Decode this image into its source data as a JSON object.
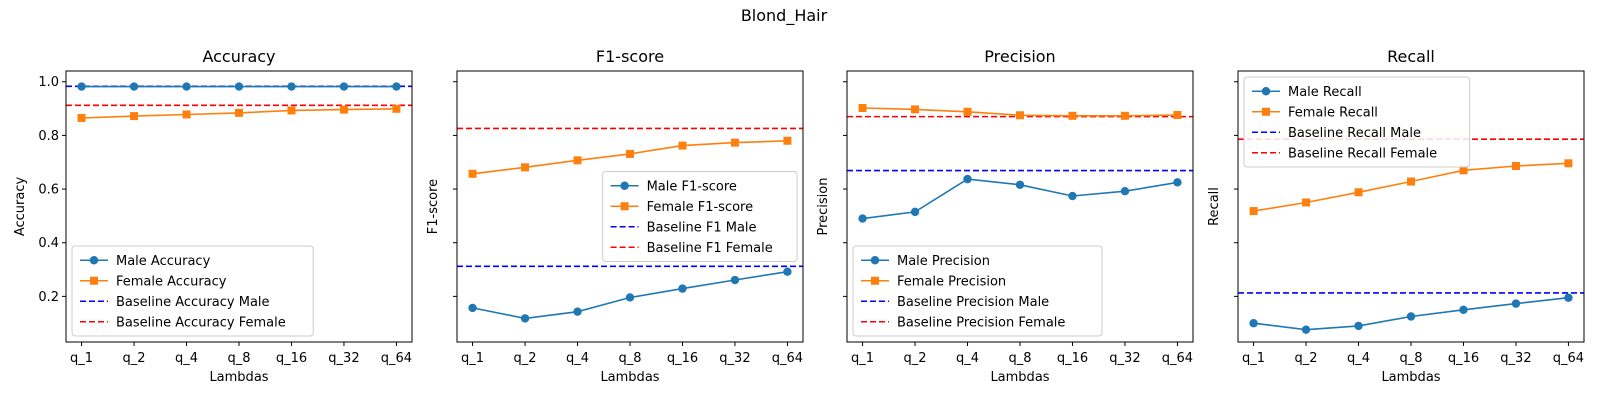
{
  "figure": {
    "title": "Blond_Hair"
  },
  "chart_data": [
    {
      "type": "line",
      "title": "Accuracy",
      "xlabel": "Lambdas",
      "ylabel": "Accuracy",
      "categories": [
        "q_1",
        "q_2",
        "q_4",
        "q_8",
        "q_16",
        "q_32",
        "q_64"
      ],
      "ylim": [
        0.03,
        1.04
      ],
      "yticks": [
        0.2,
        0.4,
        0.6,
        0.8,
        1.0
      ],
      "ytick_labels": [
        "0.2",
        "0.4",
        "0.6",
        "0.8",
        "1.0"
      ],
      "series": [
        {
          "name": "Male Accuracy",
          "color": "#1f77b4",
          "marker": "circle",
          "values": [
            0.982,
            0.982,
            0.982,
            0.982,
            0.982,
            0.982,
            0.982
          ]
        },
        {
          "name": "Female Accuracy",
          "color": "#ff7f0e",
          "marker": "square",
          "values": [
            0.865,
            0.872,
            0.878,
            0.884,
            0.893,
            0.896,
            0.899
          ]
        }
      ],
      "baselines": [
        {
          "name": "Baseline Accuracy Male",
          "color": "#0000ff",
          "value": 0.983
        },
        {
          "name": "Baseline Accuracy Female",
          "color": "#ff0000",
          "value": 0.912
        }
      ],
      "legend": "lower-left"
    },
    {
      "type": "line",
      "title": "F1-score",
      "xlabel": "Lambdas",
      "ylabel": "F1-score",
      "categories": [
        "q_1",
        "q_2",
        "q_4",
        "q_8",
        "q_16",
        "q_32",
        "q_64"
      ],
      "ylim": [
        0.03,
        1.04
      ],
      "yticks": [
        0.2,
        0.4,
        0.6,
        0.8,
        1.0
      ],
      "ytick_labels": [
        "",
        "",
        "",
        "",
        ""
      ],
      "series": [
        {
          "name": "Male F1-score",
          "color": "#1f77b4",
          "marker": "circle",
          "values": [
            0.157,
            0.118,
            0.143,
            0.196,
            0.229,
            0.261,
            0.292
          ]
        },
        {
          "name": "Female F1-score",
          "color": "#ff7f0e",
          "marker": "square",
          "values": [
            0.657,
            0.681,
            0.707,
            0.731,
            0.762,
            0.773,
            0.78
          ]
        }
      ],
      "baselines": [
        {
          "name": "Baseline F1 Male",
          "color": "#0000ff",
          "value": 0.312
        },
        {
          "name": "Baseline F1 Female",
          "color": "#ff0000",
          "value": 0.826
        }
      ],
      "legend": "center-right"
    },
    {
      "type": "line",
      "title": "Precision",
      "xlabel": "Lambdas",
      "ylabel": "Precision",
      "categories": [
        "q_1",
        "q_2",
        "q_4",
        "q_8",
        "q_16",
        "q_32",
        "q_64"
      ],
      "ylim": [
        0.03,
        1.04
      ],
      "yticks": [
        0.2,
        0.4,
        0.6,
        0.8,
        1.0
      ],
      "ytick_labels": [
        "",
        "",
        "",
        "",
        ""
      ],
      "series": [
        {
          "name": "Male Precision",
          "color": "#1f77b4",
          "marker": "circle",
          "values": [
            0.49,
            0.515,
            0.637,
            0.616,
            0.574,
            0.592,
            0.625
          ]
        },
        {
          "name": "Female Precision",
          "color": "#ff7f0e",
          "marker": "square",
          "values": [
            0.902,
            0.897,
            0.888,
            0.875,
            0.873,
            0.873,
            0.876
          ]
        }
      ],
      "baselines": [
        {
          "name": "Baseline Precision Male",
          "color": "#0000ff",
          "value": 0.669
        },
        {
          "name": "Baseline Precision Female",
          "color": "#ff0000",
          "value": 0.87
        }
      ],
      "legend": "lower-left"
    },
    {
      "type": "line",
      "title": "Recall",
      "xlabel": "Lambdas",
      "ylabel": "Recall",
      "categories": [
        "q_1",
        "q_2",
        "q_4",
        "q_8",
        "q_16",
        "q_32",
        "q_64"
      ],
      "ylim": [
        0.03,
        1.04
      ],
      "yticks": [
        0.2,
        0.4,
        0.6,
        0.8,
        1.0
      ],
      "ytick_labels": [
        "",
        "",
        "",
        "",
        ""
      ],
      "series": [
        {
          "name": "Male Recall",
          "color": "#1f77b4",
          "marker": "circle",
          "values": [
            0.1,
            0.076,
            0.09,
            0.125,
            0.15,
            0.173,
            0.195
          ]
        },
        {
          "name": "Female Recall",
          "color": "#ff7f0e",
          "marker": "square",
          "values": [
            0.518,
            0.55,
            0.588,
            0.628,
            0.67,
            0.686,
            0.696
          ]
        }
      ],
      "baselines": [
        {
          "name": "Baseline Recall Male",
          "color": "#0000ff",
          "value": 0.213
        },
        {
          "name": "Baseline Recall Female",
          "color": "#ff0000",
          "value": 0.786
        }
      ],
      "legend": "upper-left"
    }
  ]
}
